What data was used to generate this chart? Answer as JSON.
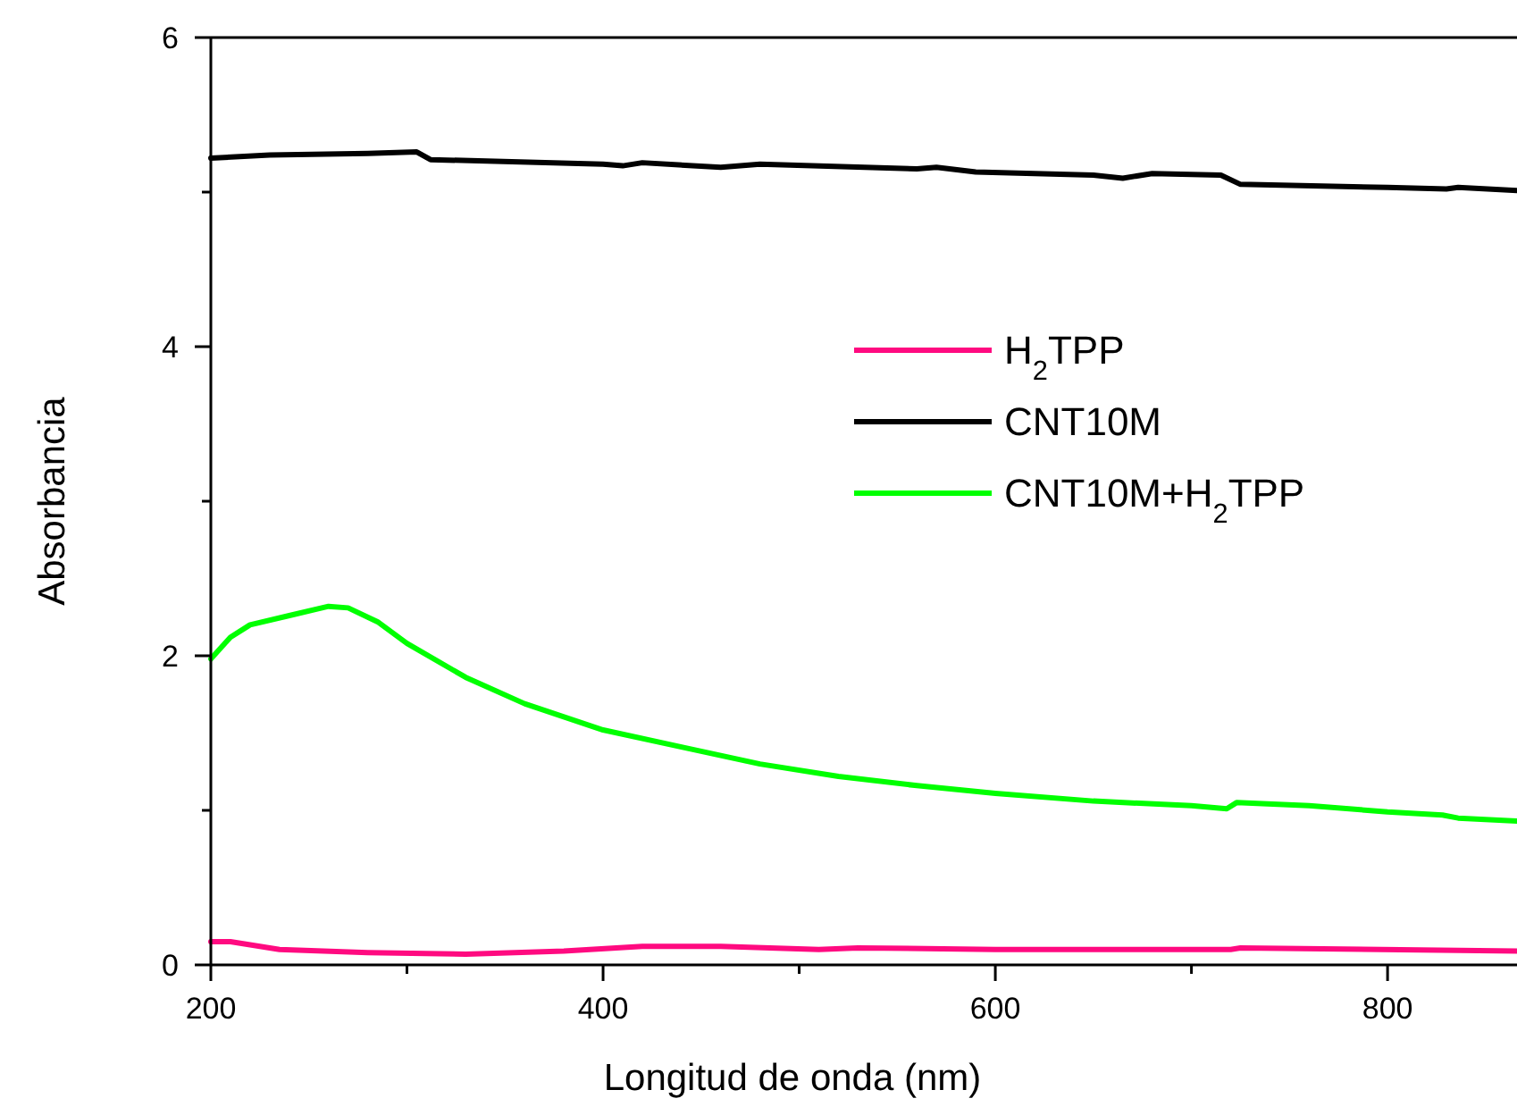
{
  "chart_data": {
    "type": "line",
    "xlabel": "Longitud de onda (nm)",
    "ylabel": "Absorbancia",
    "xlim": [
      200,
      866
    ],
    "ylim": [
      0,
      6
    ],
    "xticks": [
      200,
      {
        "value": 300,
        "label": null
      },
      400,
      {
        "value": 500,
        "label": null
      },
      600,
      {
        "value": 700,
        "label": null
      },
      800
    ],
    "yticks": [
      0,
      {
        "value": 1,
        "label": null
      },
      2,
      {
        "value": 3,
        "label": null
      },
      4,
      {
        "value": 5,
        "label": null
      },
      6
    ],
    "grid": false,
    "legend": "right",
    "marker": "none",
    "line_style": "solid",
    "series": [
      {
        "name": "H$_{2}$TPP",
        "color": "#ff0a80",
        "x": [
          200,
          210,
          235,
          280,
          330,
          380,
          420,
          460,
          510,
          530,
          600,
          720,
          725,
          866
        ],
        "values": [
          0.15,
          0.15,
          0.1,
          0.08,
          0.07,
          0.09,
          0.12,
          0.12,
          0.1,
          0.11,
          0.1,
          0.1,
          0.11,
          0.09
        ]
      },
      {
        "name": "CNT10M",
        "color": "#000000",
        "x": [
          200,
          230,
          280,
          305,
          312,
          400,
          410,
          420,
          460,
          480,
          560,
          570,
          590,
          650,
          665,
          680,
          715,
          725,
          800,
          830,
          836,
          866
        ],
        "values": [
          5.22,
          5.24,
          5.25,
          5.26,
          5.21,
          5.18,
          5.17,
          5.19,
          5.16,
          5.18,
          5.15,
          5.16,
          5.13,
          5.11,
          5.09,
          5.12,
          5.11,
          5.05,
          5.03,
          5.02,
          5.03,
          5.01
        ]
      },
      {
        "name": "CNT10M+H$_{2}$TPP",
        "color": "#00ff00",
        "x": [
          200,
          210,
          220,
          240,
          260,
          270,
          285,
          300,
          330,
          360,
          400,
          440,
          480,
          520,
          560,
          600,
          650,
          700,
          718,
          723,
          760,
          800,
          828,
          836,
          866
        ],
        "values": [
          1.98,
          2.12,
          2.2,
          2.26,
          2.32,
          2.31,
          2.22,
          2.08,
          1.86,
          1.69,
          1.52,
          1.41,
          1.3,
          1.22,
          1.16,
          1.11,
          1.06,
          1.03,
          1.01,
          1.05,
          1.03,
          0.99,
          0.97,
          0.95,
          0.93
        ]
      }
    ]
  }
}
